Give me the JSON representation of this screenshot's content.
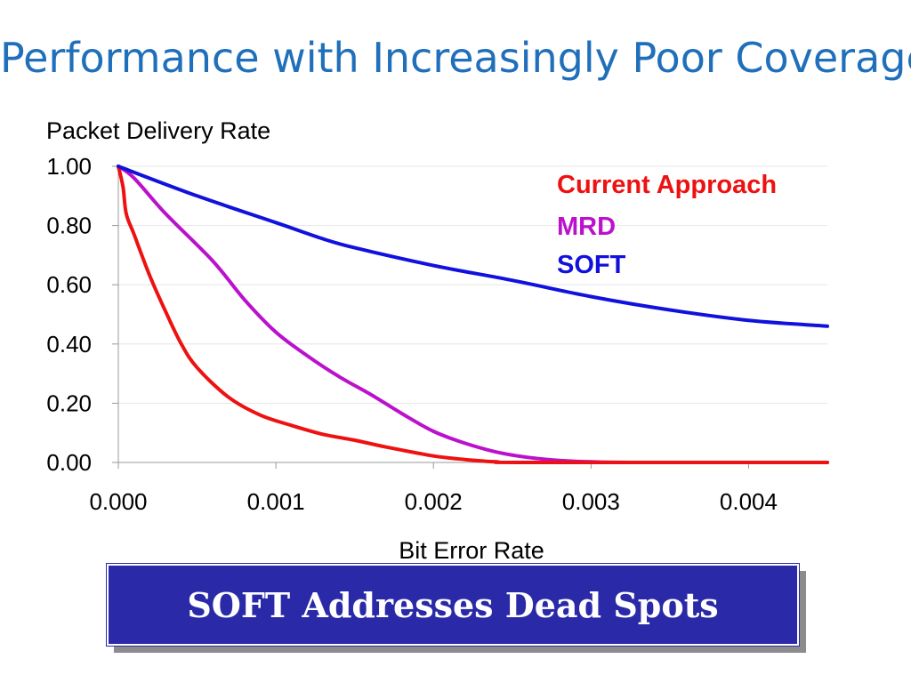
{
  "slide": {
    "title": "Performance with Increasingly Poor Coverage",
    "banner": "SOFT Addresses Dead Spots"
  },
  "colors": {
    "title": "#1f6fba",
    "banner_bg": "#2a2aa8",
    "current": "#ee1111",
    "mrd": "#bb11cc",
    "soft": "#1111dd"
  },
  "chart_data": {
    "type": "line",
    "title": "",
    "ylabel": "Packet Delivery Rate",
    "xlabel": "Bit Error Rate",
    "xlim": [
      0,
      0.0045
    ],
    "ylim": [
      0,
      1
    ],
    "grid": true,
    "legend_position": "top-right",
    "x_ticks": [
      {
        "value": 0,
        "label": "0.000"
      },
      {
        "value": 0.001,
        "label": "0.001"
      },
      {
        "value": 0.002,
        "label": "0.002"
      },
      {
        "value": 0.003,
        "label": "0.003"
      },
      {
        "value": 0.004,
        "label": "0.004"
      }
    ],
    "y_ticks": [
      {
        "value": 0,
        "label": "0.00"
      },
      {
        "value": 0.2,
        "label": "0.20"
      },
      {
        "value": 0.4,
        "label": "0.40"
      },
      {
        "value": 0.6,
        "label": "0.60"
      },
      {
        "value": 0.8,
        "label": "0.80"
      },
      {
        "value": 1,
        "label": "1.00"
      }
    ],
    "series": [
      {
        "name": "Current Approach",
        "color": "#ee1111",
        "points": [
          [
            0,
            1.0
          ],
          [
            3e-05,
            0.93
          ],
          [
            5e-05,
            0.84
          ],
          [
            0.0001,
            0.77
          ],
          [
            0.0002,
            0.63
          ],
          [
            0.0003,
            0.51
          ],
          [
            0.0004,
            0.4
          ],
          [
            0.0005,
            0.32
          ],
          [
            0.0007,
            0.22
          ],
          [
            0.0009,
            0.16
          ],
          [
            0.0011,
            0.125
          ],
          [
            0.0013,
            0.095
          ],
          [
            0.0015,
            0.075
          ],
          [
            0.0017,
            0.052
          ],
          [
            0.002,
            0.022
          ],
          [
            0.0022,
            0.01
          ],
          [
            0.0024,
            0.002
          ],
          [
            0.0026,
            0.0
          ],
          [
            0.0045,
            0.0
          ]
        ]
      },
      {
        "name": "MRD",
        "color": "#bb11cc",
        "points": [
          [
            0,
            1.0
          ],
          [
            0.0001,
            0.96
          ],
          [
            0.0003,
            0.84
          ],
          [
            0.0006,
            0.68
          ],
          [
            0.0008,
            0.55
          ],
          [
            0.001,
            0.44
          ],
          [
            0.0012,
            0.36
          ],
          [
            0.0014,
            0.29
          ],
          [
            0.0016,
            0.23
          ],
          [
            0.0018,
            0.165
          ],
          [
            0.002,
            0.105
          ],
          [
            0.0022,
            0.065
          ],
          [
            0.0024,
            0.035
          ],
          [
            0.0026,
            0.017
          ],
          [
            0.0028,
            0.007
          ],
          [
            0.003,
            0.002
          ],
          [
            0.0033,
            0.0
          ],
          [
            0.0045,
            0.0
          ]
        ]
      },
      {
        "name": "SOFT",
        "color": "#1111dd",
        "points": [
          [
            0,
            1.0
          ],
          [
            0.0005,
            0.9
          ],
          [
            0.001,
            0.81
          ],
          [
            0.0013,
            0.755
          ],
          [
            0.0015,
            0.725
          ],
          [
            0.002,
            0.665
          ],
          [
            0.0025,
            0.615
          ],
          [
            0.003,
            0.56
          ],
          [
            0.0035,
            0.515
          ],
          [
            0.004,
            0.48
          ],
          [
            0.0045,
            0.46
          ]
        ]
      }
    ]
  }
}
